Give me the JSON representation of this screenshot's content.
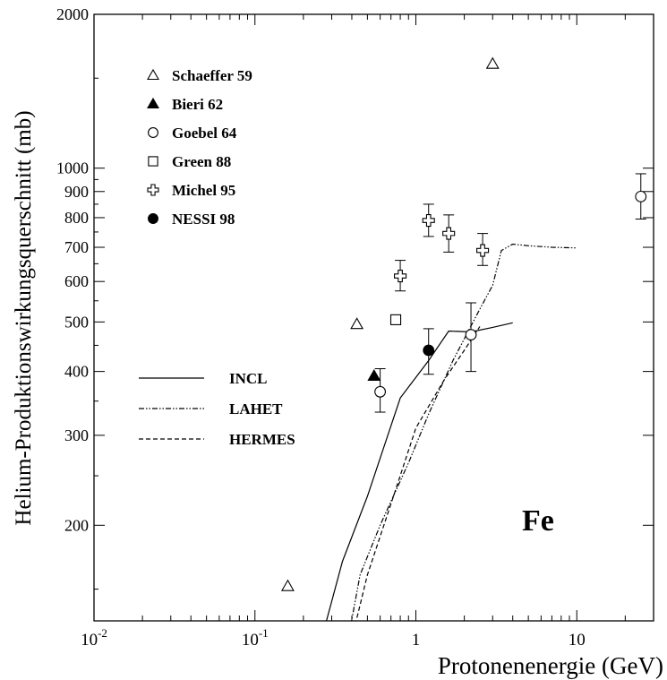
{
  "chart_data": {
    "type": "scatter",
    "title": "",
    "annotation": "Fe",
    "xlabel": "Protonenenergie (GeV)",
    "ylabel": "Helium-Produktionswirkungsquerschnitt (mb)",
    "x_scale": "log",
    "y_scale": "log",
    "xlim": [
      0.01,
      30
    ],
    "ylim": [
      130,
      2000
    ],
    "x_ticks": [
      {
        "value": 0.01,
        "base": "10",
        "exp": "-2"
      },
      {
        "value": 0.1,
        "base": "10",
        "exp": "-1"
      },
      {
        "value": 1,
        "base": "1",
        "exp": ""
      },
      {
        "value": 10,
        "base": "10",
        "exp": ""
      }
    ],
    "y_ticks": [
      {
        "value": 200,
        "label": "200"
      },
      {
        "value": 300,
        "label": "300"
      },
      {
        "value": 400,
        "label": "400"
      },
      {
        "value": 500,
        "label": "500"
      },
      {
        "value": 600,
        "label": "600"
      },
      {
        "value": 700,
        "label": "700"
      },
      {
        "value": 800,
        "label": "800"
      },
      {
        "value": 900,
        "label": "900"
      },
      {
        "value": 1000,
        "label": "1000"
      },
      {
        "value": 2000,
        "label": "2000"
      }
    ],
    "grid": false,
    "legend_position": "top-left",
    "series": [
      {
        "name": "Schaeffer 59",
        "marker": "triangle-open",
        "points": [
          {
            "x": 0.16,
            "y": 152
          },
          {
            "x": 0.43,
            "y": 495
          },
          {
            "x": 3.0,
            "y": 1600
          }
        ]
      },
      {
        "name": "Bieri 62",
        "marker": "triangle-filled",
        "points": [
          {
            "x": 0.55,
            "y": 392
          }
        ]
      },
      {
        "name": "Goebel 64",
        "marker": "circle-open",
        "points": [
          {
            "x": 0.6,
            "y": 365,
            "err_low": 333,
            "err_high": 405
          },
          {
            "x": 2.2,
            "y": 472,
            "err_low": 400,
            "err_high": 545
          },
          {
            "x": 25,
            "y": 880,
            "err_low": 795,
            "err_high": 975
          }
        ]
      },
      {
        "name": "Green 88",
        "marker": "square-open",
        "points": [
          {
            "x": 0.75,
            "y": 505
          }
        ]
      },
      {
        "name": "Michel 95",
        "marker": "cross-open",
        "points": [
          {
            "x": 0.8,
            "y": 615,
            "err_low": 575,
            "err_high": 660
          },
          {
            "x": 1.2,
            "y": 790,
            "err_low": 735,
            "err_high": 850
          },
          {
            "x": 1.6,
            "y": 745,
            "err_low": 685,
            "err_high": 810
          },
          {
            "x": 2.6,
            "y": 690,
            "err_low": 645,
            "err_high": 745
          }
        ]
      },
      {
        "name": "NESSI 98",
        "marker": "circle-filled",
        "points": [
          {
            "x": 1.2,
            "y": 440,
            "err_low": 395,
            "err_high": 485
          }
        ]
      }
    ],
    "curves": [
      {
        "name": "INCL",
        "style": "solid",
        "x": [
          0.26,
          0.35,
          0.5,
          0.8,
          1.2,
          1.6,
          2.2,
          3.0,
          4.0
        ],
        "y": [
          120,
          170,
          228,
          355,
          420,
          480,
          478,
          488,
          498
        ]
      },
      {
        "name": "LAHET",
        "style": "dash-dot",
        "x": [
          0.38,
          0.45,
          0.6,
          0.9,
          1.2,
          1.7,
          2.5,
          3.0,
          3.4,
          4.0,
          5.0,
          7.0,
          10.0
        ],
        "y": [
          120,
          160,
          200,
          265,
          330,
          420,
          530,
          590,
          690,
          710,
          705,
          700,
          698
        ]
      },
      {
        "name": "HERMES",
        "style": "dashed",
        "x": [
          0.4,
          0.5,
          0.7,
          1.0,
          1.5,
          2.0,
          2.5
        ],
        "y": [
          120,
          160,
          220,
          310,
          385,
          440,
          490
        ]
      }
    ]
  }
}
